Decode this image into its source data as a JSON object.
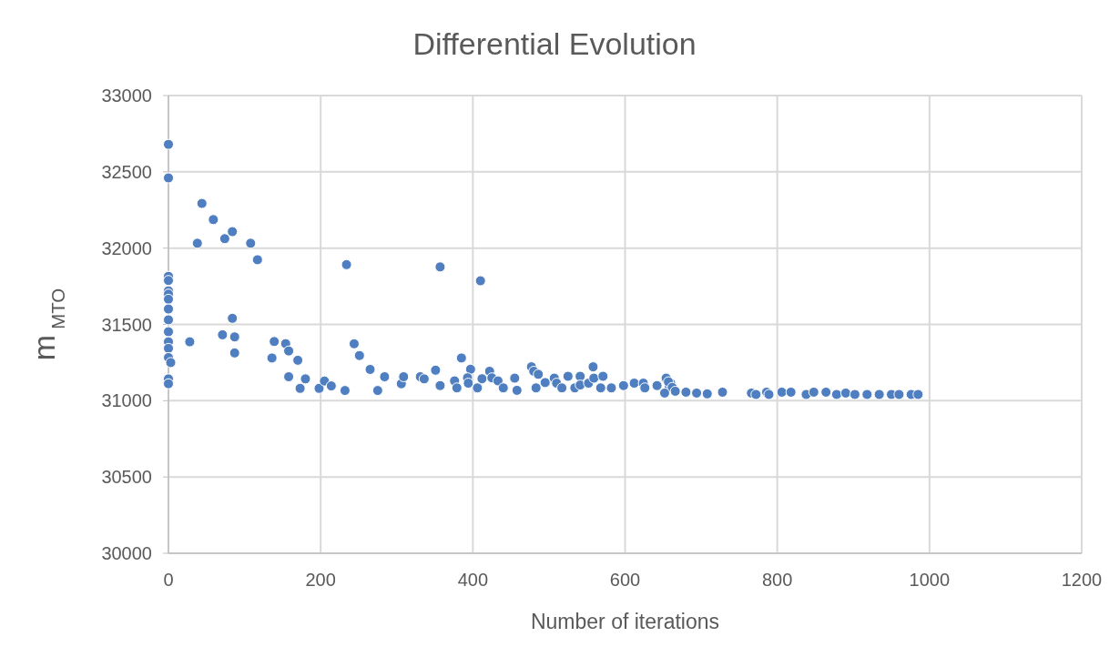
{
  "chart_data": {
    "type": "scatter",
    "title": "Differential Evolution",
    "xlabel": "Number of iterations",
    "ylabel": "m$_{MTO}$",
    "xlim": [
      0,
      1200
    ],
    "xticks": [
      0,
      200,
      400,
      600,
      800,
      1000,
      1200
    ],
    "ylim": [
      30000,
      33000
    ],
    "yticks": [
      30000,
      30500,
      31000,
      31500,
      32000,
      32500,
      33000
    ],
    "grid": true,
    "marker": "circle",
    "series": [
      {
        "color": "#4f7fc0",
        "x": [
          0,
          0,
          0,
          0,
          0,
          0,
          0,
          0,
          0,
          0,
          0,
          0,
          0,
          3,
          0,
          0,
          44,
          59,
          38,
          74,
          84,
          108,
          117,
          234,
          28,
          71,
          84,
          87,
          87,
          136,
          139,
          154,
          158,
          170,
          158,
          180,
          173,
          198,
          205,
          214,
          232,
          244,
          251,
          265,
          284,
          275,
          306,
          309,
          331,
          336,
          357,
          410,
          351,
          357,
          385,
          376,
          379,
          397,
          393,
          394,
          406,
          412,
          422,
          425,
          433,
          440,
          455,
          458,
          477,
          480,
          486,
          483,
          495,
          507,
          510,
          517,
          525,
          541,
          534,
          541,
          552,
          558,
          559,
          571,
          568,
          582,
          598,
          612,
          624,
          626,
          642,
          654,
          658,
          660,
          657,
          662,
          666,
          652,
          680,
          694,
          708,
          728,
          766,
          772,
          786,
          789,
          806,
          818,
          838,
          848,
          864,
          878,
          890,
          902,
          918,
          934,
          950,
          960,
          976,
          985
        ],
        "values": [
          32680,
          32460,
          31815,
          31788,
          31720,
          31699,
          31665,
          31601,
          31530,
          31452,
          31386,
          31343,
          31283,
          31250,
          31143,
          31111,
          32293,
          32187,
          32032,
          32062,
          32108,
          32032,
          31924,
          31892,
          31386,
          31432,
          31540,
          31418,
          31313,
          31280,
          31388,
          31374,
          31326,
          31265,
          31157,
          31143,
          31081,
          31081,
          31129,
          31097,
          31067,
          31373,
          31296,
          31205,
          31157,
          31067,
          31111,
          31157,
          31157,
          31143,
          31877,
          31786,
          31200,
          31099,
          31280,
          31130,
          31084,
          31206,
          31150,
          31115,
          31084,
          31144,
          31193,
          31150,
          31130,
          31084,
          31148,
          31068,
          31222,
          31193,
          31173,
          31084,
          31119,
          31148,
          31115,
          31084,
          31160,
          31160,
          31084,
          31103,
          31115,
          31222,
          31148,
          31160,
          31084,
          31084,
          31099,
          31115,
          31115,
          31084,
          31099,
          31148,
          31084,
          31115,
          31124,
          31087,
          31062,
          31050,
          31056,
          31050,
          31045,
          31056,
          31050,
          31041,
          31056,
          31041,
          31056,
          31056,
          31041,
          31056,
          31056,
          31041,
          31050,
          31041,
          31041,
          31041,
          31041,
          31041,
          31041,
          31041
        ]
      }
    ]
  }
}
